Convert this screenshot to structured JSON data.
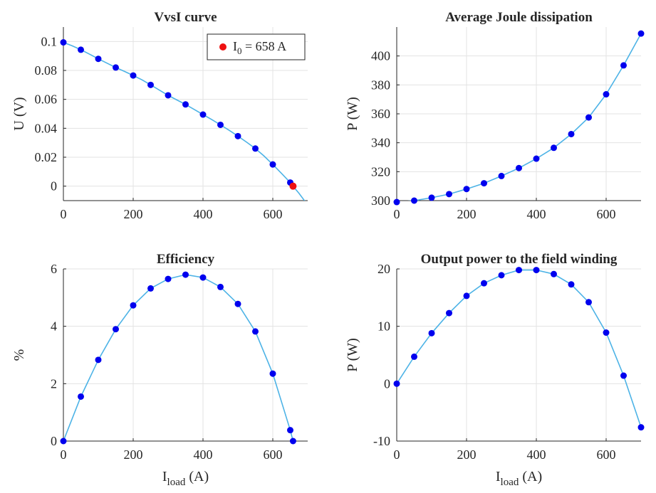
{
  "chart_data": [
    {
      "type": "line",
      "title": "VvsI curve",
      "xlabel": "",
      "ylabel": "U (V)",
      "xlim": [
        0,
        700
      ],
      "ylim": [
        -0.01,
        0.11
      ],
      "xticks": [
        0,
        200,
        400,
        600
      ],
      "yticks": [
        0,
        0.02,
        0.04,
        0.06,
        0.08,
        0.1
      ],
      "grid": true,
      "legend": {
        "position": "top-right",
        "entries": [
          {
            "text_main": "I",
            "text_sub": "0",
            "text_rest": " = 658 A"
          }
        ]
      },
      "line": {
        "x": [
          0,
          25,
          50,
          75,
          100,
          125,
          150,
          175,
          200,
          225,
          250,
          275,
          300,
          325,
          350,
          375,
          400,
          425,
          450,
          475,
          500,
          525,
          550,
          575,
          600,
          625,
          650,
          658,
          675,
          700
        ],
        "y": [
          0.0994,
          0.097,
          0.0943,
          0.0912,
          0.088,
          0.085,
          0.082,
          0.0793,
          0.0765,
          0.0735,
          0.07,
          0.0664,
          0.0628,
          0.0596,
          0.0565,
          0.053,
          0.0495,
          0.046,
          0.0424,
          0.0386,
          0.0346,
          0.0304,
          0.026,
          0.0208,
          0.015,
          0.0088,
          0.0025,
          0.0,
          -0.005,
          -0.013
        ]
      },
      "markers": {
        "x": [
          0,
          50,
          100,
          150,
          200,
          250,
          300,
          350,
          400,
          450,
          500,
          550,
          600,
          650
        ],
        "y": [
          0.0994,
          0.0943,
          0.088,
          0.082,
          0.0765,
          0.07,
          0.0628,
          0.0565,
          0.0495,
          0.0424,
          0.0346,
          0.026,
          0.015,
          0.0025
        ]
      },
      "highlight": {
        "x": [
          658
        ],
        "y": [
          0.0
        ]
      }
    },
    {
      "type": "line",
      "title": "Average Joule dissipation",
      "xlabel": "",
      "ylabel": "P (W)",
      "xlim": [
        0,
        700
      ],
      "ylim": [
        300,
        420
      ],
      "xticks": [
        0,
        200,
        400,
        600
      ],
      "yticks": [
        300,
        320,
        340,
        360,
        380,
        400
      ],
      "grid": true,
      "line": {
        "x": [
          0,
          50,
          100,
          150,
          200,
          250,
          300,
          350,
          400,
          450,
          500,
          550,
          600,
          650,
          700
        ],
        "y": [
          299,
          300,
          302,
          304.5,
          308,
          312,
          317,
          322.5,
          329,
          336.5,
          346,
          357.5,
          373.5,
          393.5,
          415.5
        ]
      },
      "markers": {
        "x": [
          0,
          50,
          100,
          150,
          200,
          250,
          300,
          350,
          400,
          450,
          500,
          550,
          600,
          650,
          700
        ],
        "y": [
          299,
          300,
          302,
          304.5,
          308,
          312,
          317,
          322.5,
          329,
          336.5,
          346,
          357.5,
          373.5,
          393.5,
          415.5
        ]
      }
    },
    {
      "type": "line",
      "title": "Efficiency",
      "xlabel_main": "I",
      "xlabel_sub": "load",
      "xlabel_rest": " (A)",
      "ylabel": "%",
      "xlim": [
        0,
        700
      ],
      "ylim": [
        0,
        6
      ],
      "xticks": [
        0,
        200,
        400,
        600
      ],
      "yticks": [
        0,
        2,
        4,
        6
      ],
      "grid": true,
      "line": {
        "x": [
          0,
          50,
          100,
          150,
          200,
          250,
          300,
          350,
          400,
          450,
          500,
          550,
          600,
          650,
          658
        ],
        "y": [
          0,
          1.55,
          2.83,
          3.9,
          4.73,
          5.32,
          5.65,
          5.8,
          5.7,
          5.37,
          4.78,
          3.82,
          2.35,
          0.38,
          0
        ]
      },
      "markers": {
        "x": [
          0,
          50,
          100,
          150,
          200,
          250,
          300,
          350,
          400,
          450,
          500,
          550,
          600,
          650,
          658
        ],
        "y": [
          0,
          1.55,
          2.83,
          3.9,
          4.73,
          5.32,
          5.65,
          5.8,
          5.7,
          5.37,
          4.78,
          3.82,
          2.35,
          0.38,
          0
        ]
      }
    },
    {
      "type": "line",
      "title": "Output power to the field winding",
      "xlabel_main": "I",
      "xlabel_sub": "load",
      "xlabel_rest": " (A)",
      "ylabel": "P (W)",
      "xlim": [
        0,
        700
      ],
      "ylim": [
        -10,
        20
      ],
      "xticks": [
        0,
        200,
        400,
        600
      ],
      "yticks": [
        -10,
        0,
        10,
        20
      ],
      "grid": true,
      "line": {
        "x": [
          0,
          50,
          100,
          150,
          200,
          250,
          300,
          350,
          400,
          450,
          500,
          550,
          600,
          650,
          700
        ],
        "y": [
          0,
          4.7,
          8.8,
          12.3,
          15.3,
          17.5,
          18.9,
          19.8,
          19.8,
          19.1,
          17.3,
          14.2,
          8.9,
          1.4,
          -7.6
        ]
      },
      "markers": {
        "x": [
          0,
          50,
          100,
          150,
          200,
          250,
          300,
          350,
          400,
          450,
          500,
          550,
          600,
          650,
          700
        ],
        "y": [
          0,
          4.7,
          8.8,
          12.3,
          15.3,
          17.5,
          18.9,
          19.8,
          19.8,
          19.1,
          17.3,
          14.2,
          8.9,
          1.4,
          -7.6
        ]
      }
    }
  ],
  "colors": {
    "line": "#4db3e6",
    "marker": "#0000ee",
    "highlight": "#ee1111",
    "grid": "#e3e3e3",
    "axis": "#262626"
  }
}
